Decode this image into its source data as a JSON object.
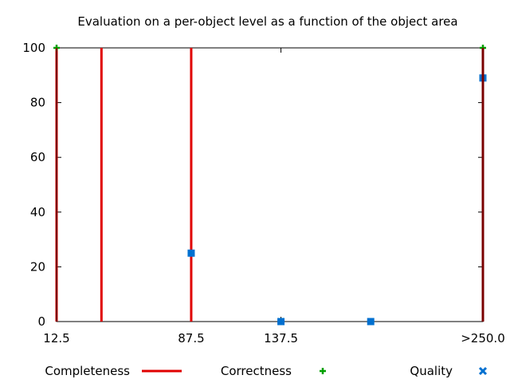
{
  "chart_data": {
    "type": "scatter",
    "title": "Evaluation on a per-object level as a function of the object area",
    "xlabel": "",
    "ylabel": "",
    "x_ticks": [
      {
        "value": 12.5,
        "label": "12.5"
      },
      {
        "value": 87.5,
        "label": "87.5"
      },
      {
        "value": 137.5,
        "label": "137.5"
      },
      {
        "value": 250,
        "label": ">250.0"
      }
    ],
    "xlim": [
      12.5,
      250
    ],
    "ylim": [
      0,
      100
    ],
    "y_ticks": [
      {
        "value": 0,
        "label": "0"
      },
      {
        "value": 20,
        "label": "20"
      },
      {
        "value": 40,
        "label": "40"
      },
      {
        "value": 60,
        "label": "60"
      },
      {
        "value": 80,
        "label": "80"
      },
      {
        "value": 100,
        "label": "100"
      }
    ],
    "grid": false,
    "legend_position": "bottom",
    "series": [
      {
        "name": "Completeness",
        "marker": "impulse",
        "color": "#e00000",
        "points": [
          {
            "x": 12.5,
            "y": 100
          },
          {
            "x": 37.5,
            "y": 100
          },
          {
            "x": 87.5,
            "y": 100
          },
          {
            "x": 250,
            "y": 100
          }
        ]
      },
      {
        "name": "Correctness",
        "marker": "plus",
        "color": "#00a000",
        "points": [
          {
            "x": 12.5,
            "y": 100
          },
          {
            "x": 250,
            "y": 100
          }
        ]
      },
      {
        "name": "Quality",
        "marker": "square",
        "color": "#0070d0",
        "points": [
          {
            "x": 87.5,
            "y": 25
          },
          {
            "x": 137.5,
            "y": 0
          },
          {
            "x": 187.5,
            "y": 0
          },
          {
            "x": 250,
            "y": 89
          }
        ]
      }
    ]
  }
}
